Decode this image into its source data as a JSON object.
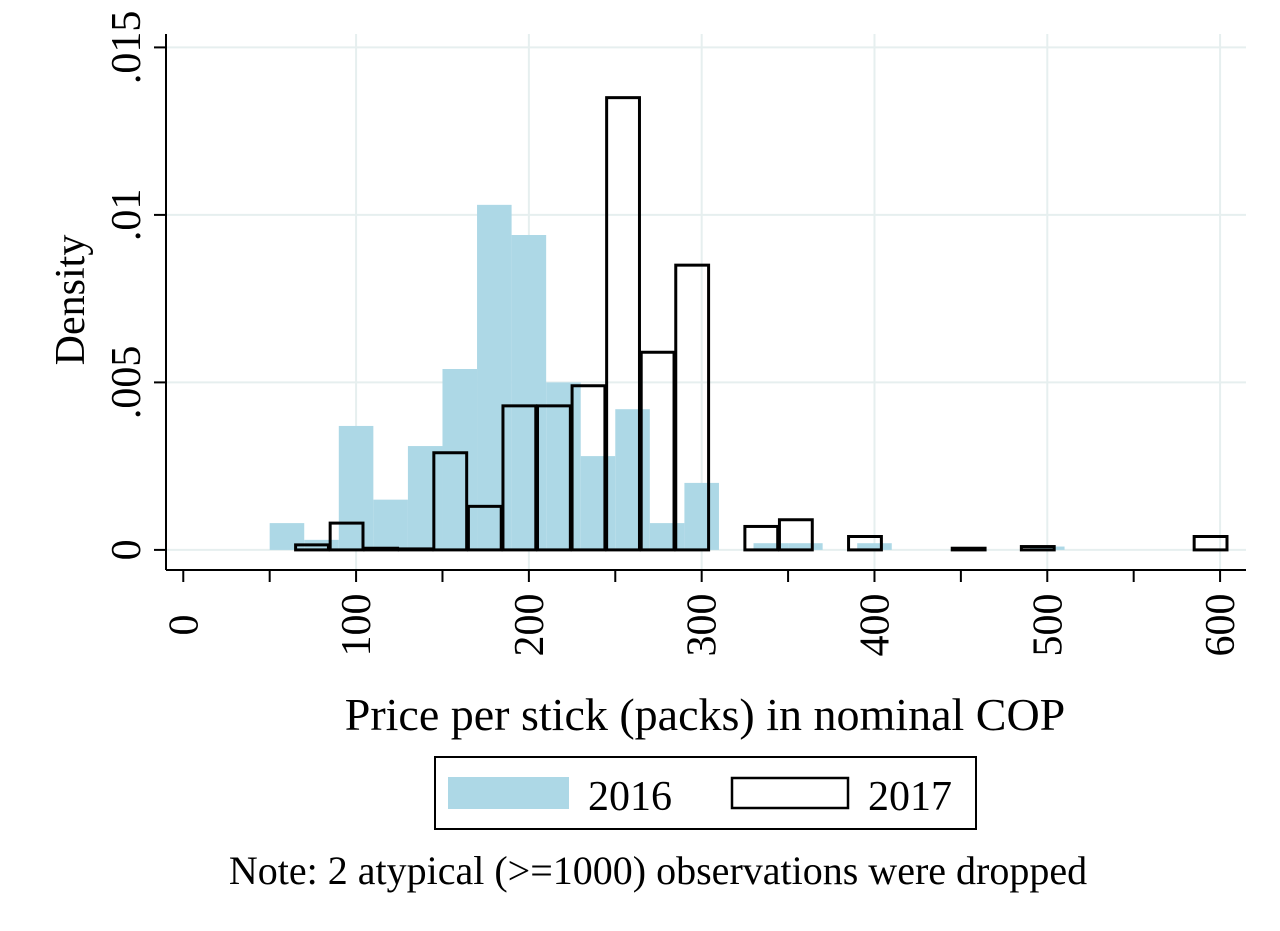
{
  "chart_data": {
    "type": "bar",
    "xlabel": "Price per stick (packs) in nominal COP",
    "ylabel": "Density",
    "xlim": [
      -10,
      615
    ],
    "ylim": [
      -0.0006,
      0.0154
    ],
    "x_ticks": [
      0,
      100,
      200,
      300,
      400,
      500,
      600
    ],
    "x_minor_ticks": [
      50,
      150,
      250,
      350,
      450,
      550
    ],
    "y_ticks": [
      0,
      0.005,
      0.01,
      0.015
    ],
    "y_tick_labels": [
      "0",
      ".005",
      ".01",
      ".015"
    ],
    "grid": true,
    "legend_position": "bottom",
    "series": [
      {
        "name": "2016",
        "style": "filled",
        "color": "#add8e6",
        "bin_width": 20,
        "bins": [
          {
            "x0": 50,
            "value": 0.0008
          },
          {
            "x0": 70,
            "value": 0.0003
          },
          {
            "x0": 90,
            "value": 0.0037
          },
          {
            "x0": 110,
            "value": 0.0015
          },
          {
            "x0": 130,
            "value": 0.0031
          },
          {
            "x0": 150,
            "value": 0.0054
          },
          {
            "x0": 170,
            "value": 0.0103
          },
          {
            "x0": 190,
            "value": 0.0094
          },
          {
            "x0": 210,
            "value": 0.005
          },
          {
            "x0": 230,
            "value": 0.0028
          },
          {
            "x0": 250,
            "value": 0.0042
          },
          {
            "x0": 270,
            "value": 0.0008
          },
          {
            "x0": 290,
            "value": 0.002
          },
          {
            "x0": 330,
            "value": 0.0002
          },
          {
            "x0": 350,
            "value": 0.0002
          },
          {
            "x0": 390,
            "value": 0.0002
          },
          {
            "x0": 490,
            "value": 0.0001
          }
        ]
      },
      {
        "name": "2017",
        "style": "outline",
        "color": "#000000",
        "bin_width": 19,
        "bins": [
          {
            "x0": 65,
            "value": 0.00015
          },
          {
            "x0": 85,
            "value": 0.0008
          },
          {
            "x0": 105,
            "value": 5e-05
          },
          {
            "x0": 125,
            "value": 1e-05
          },
          {
            "x0": 145,
            "value": 0.0029
          },
          {
            "x0": 165,
            "value": 0.0013
          },
          {
            "x0": 185,
            "value": 0.0043
          },
          {
            "x0": 205,
            "value": 0.0043
          },
          {
            "x0": 225,
            "value": 0.0049
          },
          {
            "x0": 245,
            "value": 0.0135
          },
          {
            "x0": 265,
            "value": 0.0059
          },
          {
            "x0": 285,
            "value": 0.0085
          },
          {
            "x0": 325,
            "value": 0.0007
          },
          {
            "x0": 345,
            "value": 0.0009
          },
          {
            "x0": 385,
            "value": 0.0004
          },
          {
            "x0": 445,
            "value": 5e-05
          },
          {
            "x0": 485,
            "value": 0.0001
          },
          {
            "x0": 585,
            "value": 0.0004
          }
        ]
      }
    ],
    "legend": [
      {
        "label": "2016"
      },
      {
        "label": "2017"
      }
    ],
    "note": "Note: 2 atypical (>=1000) observations were dropped"
  }
}
